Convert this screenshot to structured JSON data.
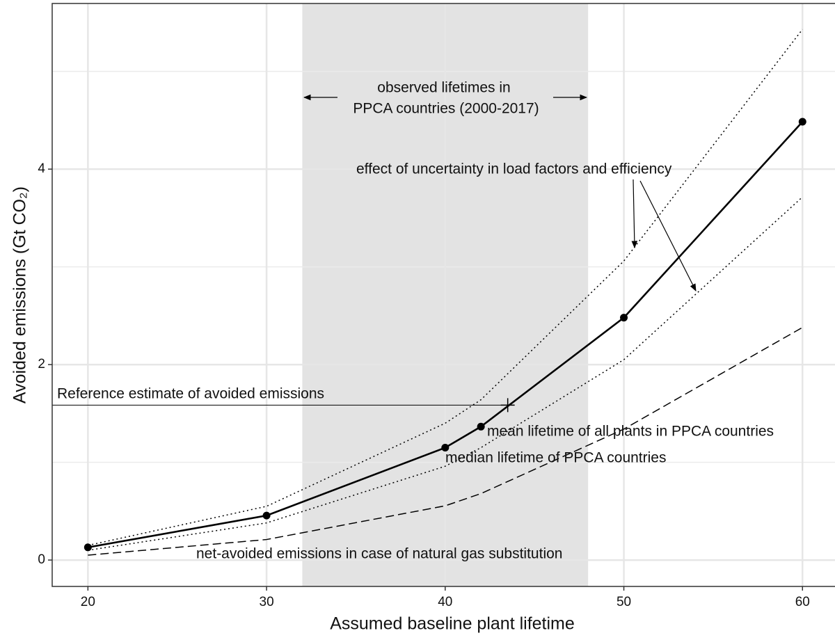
{
  "chart_data": {
    "type": "line",
    "x_label": "Assumed baseline plant lifetime",
    "y_label": "Avoided emissions (Gt CO₂)",
    "x": [
      20,
      30,
      40,
      42,
      50,
      60
    ],
    "series": [
      {
        "color": "#000000",
        "style": "solid",
        "markers": true,
        "values": [
          0.13,
          0.455,
          1.15,
          1.365,
          2.48,
          4.485
        ]
      },
      {
        "color": "#000000",
        "style": "dotted",
        "markers": false,
        "values": [
          0.15,
          0.55,
          1.4,
          1.64,
          3.06,
          5.43
        ]
      },
      {
        "color": "#000000",
        "style": "dotted",
        "markers": false,
        "values": [
          0.1,
          0.38,
          0.96,
          1.15,
          2.05,
          3.715
        ]
      },
      {
        "color": "#000000",
        "style": "dashed",
        "markers": false,
        "values": [
          0.05,
          0.21,
          0.555,
          0.68,
          1.34,
          2.38
        ]
      }
    ],
    "shaded_range": [
      32,
      48
    ],
    "reference": {
      "label": "Reference estimate of avoided emissions",
      "x": 43.5,
      "y": 1.585
    },
    "annotations": [
      "observed lifetimes in",
      "PPCA countries (2000-2017)",
      "effect of uncertainty in load factors and efficiency",
      "mean lifetime of all plants in PPCA countries",
      "median lifetime of PPCA countries",
      "net-avoided emissions in case of natural gas substitution"
    ],
    "xlim": [
      18.0,
      61.82
    ],
    "ylim": [
      -0.27,
      5.695
    ],
    "xticks": [
      20,
      30,
      40,
      50,
      60
    ],
    "yticks": [
      0,
      2,
      4
    ],
    "y_minor_grid": [
      1,
      3,
      5
    ],
    "grid": true
  }
}
